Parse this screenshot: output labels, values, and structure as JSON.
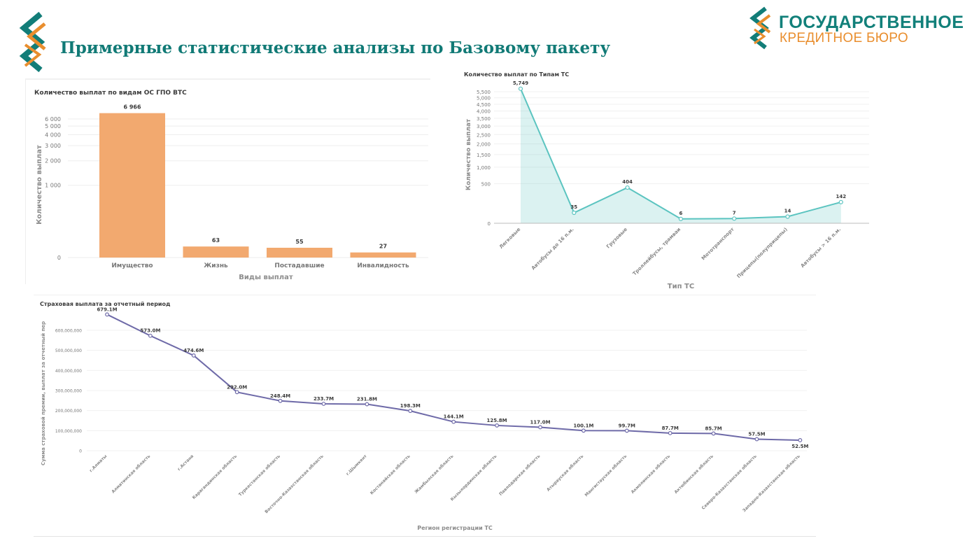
{
  "header": {
    "title": "Примерные статистические анализы по Базовому пакету",
    "brand_line1": "ГОСУДАРСТВЕННОЕ",
    "brand_line2": "КРЕДИТНОЕ БЮРО",
    "colors": {
      "teal": "#117a76",
      "orange": "#e98e2e"
    }
  },
  "chart_data": [
    {
      "type": "bar",
      "title": "Количество выплат по видам ОС ГПО ВТС",
      "xlabel": "Виды выплат",
      "ylabel": "Количество выплат",
      "categories": [
        "Имущество",
        "Жизнь",
        "Постадавшие",
        "Инвалидность"
      ],
      "values": [
        6966,
        63,
        55,
        27
      ],
      "value_labels": [
        "6 966",
        "63",
        "55",
        "27"
      ],
      "yticks": [
        0,
        1000,
        2000,
        3000,
        4000,
        5000,
        6000
      ],
      "ytick_labels": [
        "0",
        "1 000",
        "2 000",
        "3 000",
        "4 000",
        "5 000",
        "6 000"
      ],
      "scale": "symlog",
      "color": "#f2a96f",
      "grid": true
    },
    {
      "type": "area",
      "title": "Количество выплат по Типам ТС",
      "xlabel": "Тип ТС",
      "ylabel": "Количество выплат",
      "categories": [
        "Легковые",
        "Автобусы до 16 п.м.",
        "Грузовые",
        "Троллейбусы, трамваи",
        "Мототранспорт",
        "Прицепы(полуприцепы)",
        "Автобусы > 16 п.м."
      ],
      "values": [
        5749,
        35,
        404,
        6,
        7,
        14,
        142
      ],
      "value_labels": [
        "5,749",
        "35",
        "404",
        "6",
        "7",
        "14",
        "142"
      ],
      "yticks": [
        0,
        500,
        1000,
        1500,
        2000,
        2500,
        3000,
        3500,
        4000,
        4500,
        5000,
        5500
      ],
      "ytick_labels": [
        "0",
        "500",
        "1,000",
        "1,500",
        "2,000",
        "2,500",
        "3,000",
        "3,500",
        "4,000",
        "4,500",
        "5,000",
        "5,500"
      ],
      "scale": "sqrt",
      "color": "#5bc4c0",
      "grid": true
    },
    {
      "type": "line",
      "title": "Страховая выплата за отчетный период",
      "xlabel": "Регион регистрации ТС",
      "ylabel": "Сумма страховой премии, выплат за отчетный пер",
      "categories": [
        "г.Алматы",
        "Алматинская область",
        "г.Астана",
        "Карагандинская область",
        "Туркестанская область",
        "Восточно-Казахстанская область",
        "г.Шымкент",
        "Костанайская область",
        "Жамбылская область",
        "Кызылординская область",
        "Павлодарская область",
        "Атырауская область",
        "Мангистауская область",
        "Акмолинская область",
        "Актюбинская область",
        "Северо-Казахстанская область",
        "Западно-Казахстанская область"
      ],
      "values": [
        679100000,
        573000000,
        474600000,
        292000000,
        248400000,
        233700000,
        231800000,
        198300000,
        144100000,
        125800000,
        117000000,
        100100000,
        99700000,
        87700000,
        85700000,
        57500000,
        52500000
      ],
      "value_labels": [
        "679.1M",
        "573.0M",
        "474.6M",
        "292.0M",
        "248.4M",
        "233.7M",
        "231.8M",
        "198.3M",
        "144.1M",
        "125.8M",
        "117.0M",
        "100.1M",
        "99.7M",
        "87.7M",
        "85.7M",
        "57.5M",
        "52.5M"
      ],
      "yticks": [
        0,
        100000000,
        200000000,
        300000000,
        400000000,
        500000000,
        600000000
      ],
      "ytick_labels": [
        "0",
        "100,000,000",
        "200,000,000",
        "300,000,000",
        "400,000,000",
        "500,000,000",
        "600,000,000"
      ],
      "ylim": [
        0,
        700000000
      ],
      "color": "#6e6aa8",
      "grid": true
    }
  ]
}
